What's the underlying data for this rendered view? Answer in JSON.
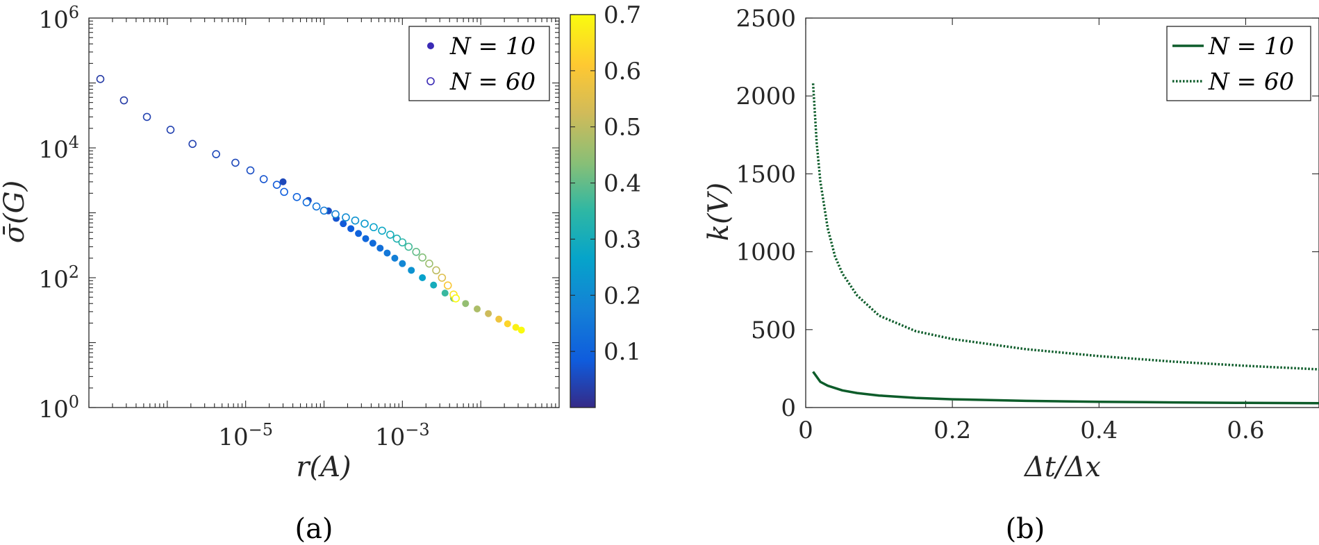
{
  "panels": {
    "a": {
      "caption": "(a)"
    },
    "b": {
      "caption": "(b)"
    }
  },
  "chart_data": [
    {
      "type": "scatter",
      "panel": "a",
      "xscale": "log",
      "yscale": "log",
      "xlim": [
        1e-07,
        0.1
      ],
      "ylim": [
        1,
        1000000
      ],
      "xlabel": "r(A)",
      "ylabel": "σ̄(G)",
      "x_ticks": [
        1e-05,
        0.001
      ],
      "x_tick_labels": [
        "10^{-5}",
        "10^{-3}"
      ],
      "y_ticks": [
        1,
        100,
        10000,
        1000000
      ],
      "y_tick_labels": [
        "10^{0}",
        "10^{2}",
        "10^{4}",
        "10^{6}"
      ],
      "legend_position": "top-right",
      "colorbar": {
        "min": 0,
        "max": 0.7,
        "ticks": [
          0.1,
          0.2,
          0.3,
          0.4,
          0.5,
          0.6,
          0.7
        ],
        "tick_labels": [
          "0.1",
          "0.2",
          "0.3",
          "0.4",
          "0.5",
          "0.6",
          "0.7"
        ]
      },
      "series": [
        {
          "name": "N = 10",
          "marker": "filled-circle",
          "points": [
            [
              3e-05,
              3000,
              0.05
            ],
            [
              6.3e-05,
              1550,
              0.05
            ],
            [
              0.000114,
              1070,
              0.06
            ],
            [
              0.000143,
              820,
              0.07
            ],
            [
              0.000176,
              680,
              0.08
            ],
            [
              0.00022,
              570,
              0.09
            ],
            [
              0.000275,
              480,
              0.1
            ],
            [
              0.00034,
              400,
              0.11
            ],
            [
              0.00042,
              340,
              0.12
            ],
            [
              0.00052,
              285,
              0.13
            ],
            [
              0.00064,
              240,
              0.15
            ],
            [
              0.0008,
              200,
              0.17
            ],
            [
              0.001,
              165,
              0.19
            ],
            [
              0.0013,
              130,
              0.22
            ],
            [
              0.0018,
              100,
              0.26
            ],
            [
              0.0025,
              77,
              0.3
            ],
            [
              0.0035,
              58,
              0.36
            ],
            [
              0.0045,
              48,
              0.42
            ],
            [
              0.0064,
              40,
              0.45
            ],
            [
              0.009,
              33,
              0.48
            ],
            [
              0.0125,
              28,
              0.52
            ],
            [
              0.017,
              23,
              0.58
            ],
            [
              0.022,
              19.5,
              0.63
            ],
            [
              0.028,
              17.2,
              0.68
            ],
            [
              0.033,
              15.6,
              0.7
            ]
          ]
        },
        {
          "name": "N = 60",
          "marker": "open-circle",
          "points": [
            [
              1.4e-07,
              115000,
              0.03
            ],
            [
              2.8e-07,
              54000,
              0.03
            ],
            [
              5.5e-07,
              30000,
              0.04
            ],
            [
              1.1e-06,
              19000,
              0.04
            ],
            [
              2.1e-06,
              11500,
              0.04
            ],
            [
              4.2e-06,
              8000,
              0.05
            ],
            [
              7.4e-06,
              5900,
              0.05
            ],
            [
              1.15e-05,
              4500,
              0.06
            ],
            [
              1.7e-05,
              3300,
              0.07
            ],
            [
              2.5e-05,
              2700,
              0.08
            ],
            [
              3.1e-05,
              2100,
              0.09
            ],
            [
              4.5e-05,
              1750,
              0.1
            ],
            [
              6e-05,
              1450,
              0.12
            ],
            [
              8e-05,
              1250,
              0.14
            ],
            [
              0.0001,
              1080,
              0.16
            ],
            [
              0.00014,
              950,
              0.18
            ],
            [
              0.00019,
              850,
              0.2
            ],
            [
              0.00025,
              760,
              0.22
            ],
            [
              0.00033,
              680,
              0.24
            ],
            [
              0.00043,
              600,
              0.26
            ],
            [
              0.00055,
              530,
              0.28
            ],
            [
              0.0007,
              460,
              0.3
            ],
            [
              0.00085,
              400,
              0.32
            ],
            [
              0.001,
              350,
              0.34
            ],
            [
              0.0012,
              300,
              0.37
            ],
            [
              0.0015,
              250,
              0.4
            ],
            [
              0.0018,
              205,
              0.43
            ],
            [
              0.0022,
              165,
              0.46
            ],
            [
              0.0027,
              130,
              0.5
            ],
            [
              0.0032,
              100,
              0.55
            ],
            [
              0.0038,
              76,
              0.6
            ],
            [
              0.0045,
              55,
              0.66
            ],
            [
              0.0048,
              48,
              0.7
            ]
          ]
        }
      ]
    },
    {
      "type": "line",
      "panel": "b",
      "xlim": [
        0,
        0.7
      ],
      "ylim": [
        0,
        2500
      ],
      "xlabel": "Δt/Δx",
      "ylabel": "k(V)",
      "x_ticks": [
        0,
        0.2,
        0.4,
        0.6
      ],
      "x_tick_labels": [
        "0",
        "0.2",
        "0.4",
        "0.6"
      ],
      "y_ticks": [
        0,
        500,
        1000,
        1500,
        2000,
        2500
      ],
      "y_tick_labels": [
        "0",
        "500",
        "1000",
        "1500",
        "2000",
        "2500"
      ],
      "legend_position": "top-right",
      "color": "#0d5c2a",
      "series": [
        {
          "name": "N = 10",
          "style": "solid",
          "x": [
            0.01,
            0.02,
            0.03,
            0.05,
            0.07,
            0.1,
            0.15,
            0.2,
            0.3,
            0.4,
            0.5,
            0.6,
            0.7
          ],
          "y": [
            230,
            165,
            140,
            110,
            93,
            77,
            62,
            53,
            43,
            37,
            33,
            30,
            28
          ]
        },
        {
          "name": "N = 60",
          "style": "dotted",
          "x": [
            0.01,
            0.015,
            0.02,
            0.03,
            0.04,
            0.05,
            0.07,
            0.1,
            0.15,
            0.2,
            0.3,
            0.4,
            0.5,
            0.6,
            0.7
          ],
          "y": [
            2080,
            1700,
            1450,
            1150,
            970,
            860,
            720,
            590,
            490,
            440,
            375,
            330,
            295,
            268,
            245
          ]
        }
      ]
    }
  ]
}
